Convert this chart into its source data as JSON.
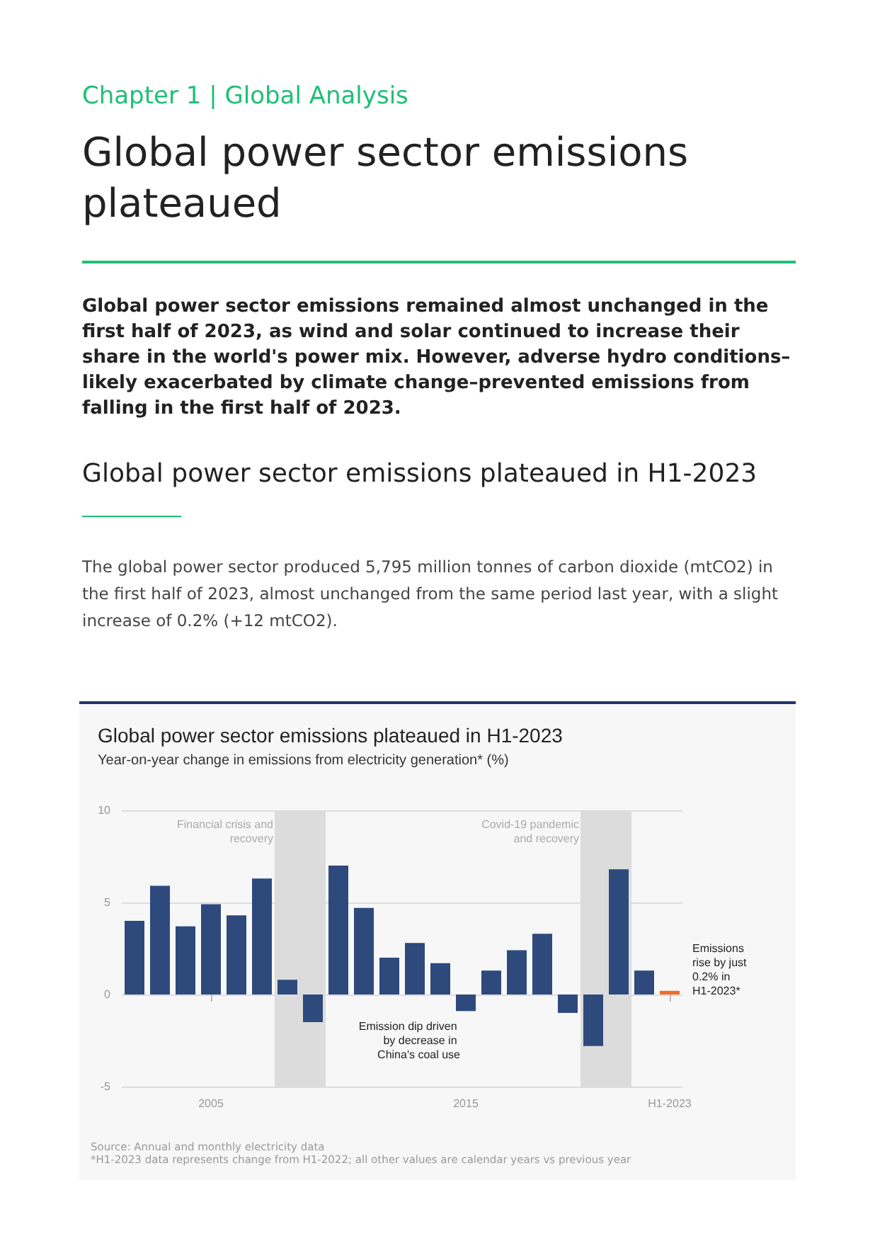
{
  "chart_data": {
    "type": "bar",
    "title": "Global power sector emissions plateaued in H1-2023",
    "subtitle": "Year-on-year change in emissions from electricity generation* (%)",
    "x": [
      2002,
      2003,
      2004,
      2005,
      2006,
      2007,
      2008,
      2009,
      2010,
      2011,
      2012,
      2013,
      2014,
      2015,
      2016,
      2017,
      2018,
      2019,
      2020,
      2021,
      2022,
      2023
    ],
    "values": [
      4.0,
      5.9,
      3.7,
      4.9,
      4.3,
      6.3,
      0.8,
      -1.5,
      7.0,
      4.7,
      2.0,
      2.8,
      1.7,
      -0.9,
      1.3,
      2.4,
      3.3,
      -1.0,
      -2.8,
      6.8,
      1.3,
      0.2
    ],
    "colors": [
      "#2e4a7d",
      "#2e4a7d",
      "#2e4a7d",
      "#2e4a7d",
      "#2e4a7d",
      "#2e4a7d",
      "#2e4a7d",
      "#2e4a7d",
      "#2e4a7d",
      "#2e4a7d",
      "#2e4a7d",
      "#2e4a7d",
      "#2e4a7d",
      "#2e4a7d",
      "#2e4a7d",
      "#2e4a7d",
      "#2e4a7d",
      "#2e4a7d",
      "#2e4a7d",
      "#2e4a7d",
      "#2e4a7d",
      "#f26b2a"
    ],
    "xlim": [
      2001.5,
      2023.5
    ],
    "xticks": [
      2005,
      2015,
      {
        "value": 2023,
        "label": "H1-2023"
      }
    ],
    "ylim": [
      -5,
      10
    ],
    "yticks": [
      -5,
      0,
      5,
      10
    ],
    "grid": "y",
    "bands": [
      {
        "axis": "x",
        "from": 2007.5,
        "to": 2009.5,
        "label": "Financial crisis and recovery",
        "color": "#dcdcdc"
      },
      {
        "axis": "x",
        "from": 2019.5,
        "to": 2021.5,
        "label": "Covid-19 pandemic and recovery",
        "color": "#dcdcdc"
      }
    ],
    "annotations": [
      "Chapter 1 | Global Analysis",
      "Global power sector emissions plateaued",
      "Global power sector emissions remained almost unchanged in the first half of 2023, as wind and solar continued to increase their share in the world's power mix. However, adverse hydro conditions–likely exacerbated by climate change–prevented emissions from falling in the first half of 2023.",
      "Global power sector emissions plateaued in H1-2023",
      "The global power sector produced 5,795 million tonnes of carbon dioxide (mtCO2) in the first half of 2023, almost unchanged from the same period last year, with a slight increase of 0.2% (+12 mtCO2).",
      {
        "text": "Emission dip driven by decrease in China's coal use",
        "x": 2015,
        "y": -0.9
      },
      {
        "text": "Emissions rise by just 0.2% in H1-2023*",
        "x": 2023,
        "y": 0.2
      },
      "Source: Annual and monthly electricity data",
      "*H1-2023 data represents change from H1-2022; all other values are calendar years vs previous year"
    ]
  }
}
